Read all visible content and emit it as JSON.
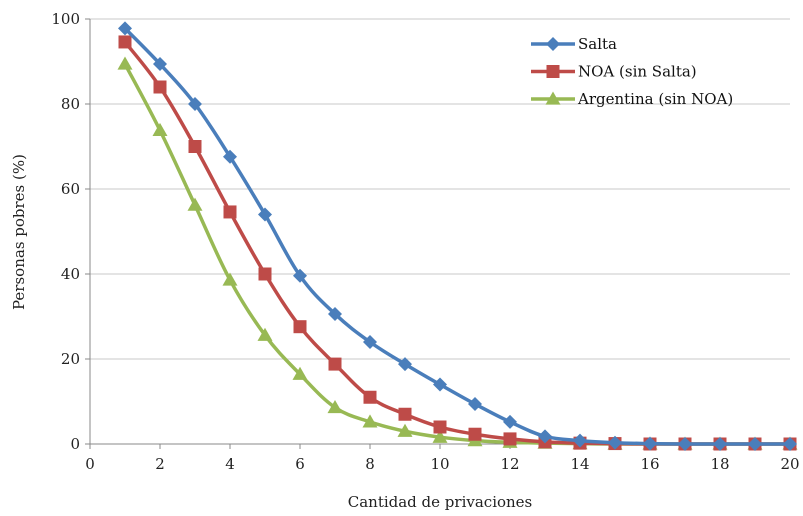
{
  "chart_data": {
    "type": "line",
    "title": "",
    "xlabel": "Cantidad  de privaciones",
    "ylabel": "Personas pobres (%)",
    "xlim": [
      0,
      20
    ],
    "ylim": [
      0,
      100
    ],
    "xticks": [
      "0",
      "2",
      "4",
      "6",
      "8",
      "10",
      "12",
      "14",
      "16",
      "18",
      "20"
    ],
    "yticks": [
      "0",
      "20",
      "40",
      "60",
      "80",
      "100"
    ],
    "grid": "horizontal",
    "legend_position": "top-right",
    "x": [
      1,
      2,
      3,
      4,
      5,
      6,
      7,
      8,
      9,
      10,
      11,
      12,
      13,
      14,
      15,
      16,
      17,
      18,
      19,
      20
    ],
    "series": [
      {
        "name": "Salta",
        "color": "#4A7EBB",
        "marker": "diamond",
        "values": [
          97.8,
          89.4,
          80.0,
          67.6,
          54.0,
          39.6,
          30.6,
          24.0,
          18.8,
          14.0,
          9.4,
          5.2,
          1.8,
          0.8,
          0.3,
          0.1,
          0.0,
          0.0,
          0.0,
          0.0
        ]
      },
      {
        "name": "NOA (sin Salta)",
        "color": "#BE4B48",
        "marker": "square",
        "values": [
          94.6,
          84.0,
          70.0,
          54.6,
          40.0,
          27.6,
          18.8,
          11.0,
          7.0,
          4.0,
          2.3,
          1.2,
          0.5,
          0.2,
          0.1,
          0.0,
          0.0,
          0.0,
          0.0,
          0.0
        ]
      },
      {
        "name": "Argentina (sin NOA)",
        "color": "#98B954",
        "marker": "triangle",
        "values": [
          89.4,
          73.8,
          56.2,
          38.6,
          25.6,
          16.4,
          8.6,
          5.2,
          3.0,
          1.6,
          0.8,
          0.4,
          0.2,
          0.1,
          0.0,
          0.0,
          0.0,
          0.0,
          0.0,
          0.0
        ]
      }
    ]
  }
}
